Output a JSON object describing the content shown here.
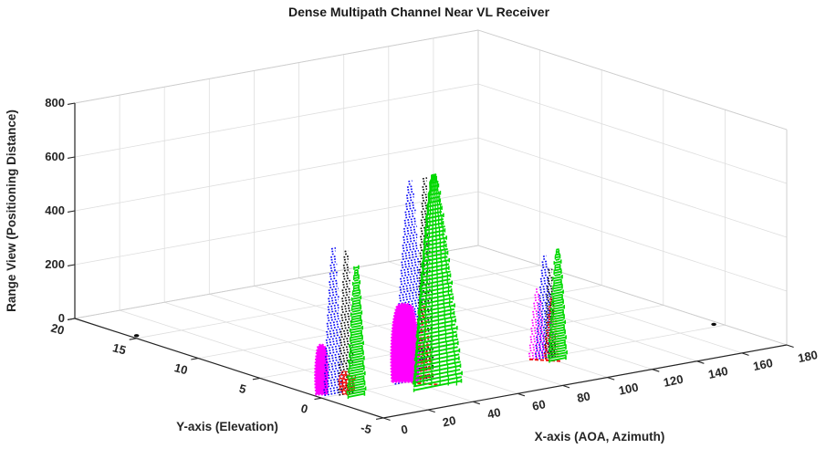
{
  "chart_data": {
    "type": "scatter",
    "subtype": "3d-mesh-spike-plot",
    "title": "Dense Multipath Channel Near VL Receiver",
    "xlabel": "X-axis (AOA, Azimuth)",
    "ylabel": "Y-axis (Elevation)",
    "zlabel": "Range View (Positioning Distance)",
    "xlim": [
      0,
      180
    ],
    "ylim": [
      -5,
      20
    ],
    "zlim": [
      0,
      800
    ],
    "xticks": [
      0,
      20,
      40,
      60,
      80,
      100,
      120,
      140,
      160,
      180
    ],
    "yticks": [
      20,
      15,
      10,
      5,
      0,
      -5
    ],
    "zticks": [
      0,
      200,
      400,
      600,
      800
    ],
    "grid": true,
    "legend": "none",
    "series": [
      {
        "name": "blue-mesh",
        "color": "#0a0af5",
        "style": "dotted-mesh"
      },
      {
        "name": "black-mesh",
        "color": "#0d0d0d",
        "style": "dotted-mesh"
      },
      {
        "name": "green-mesh",
        "color": "#00d800",
        "style": "solid-lattice-mesh"
      },
      {
        "name": "magenta-mesh",
        "color": "#ff00ff",
        "style": "dense-fill-mesh"
      },
      {
        "name": "red-mesh",
        "color": "#f50f0f",
        "style": "dashed-mesh"
      }
    ],
    "clusters": [
      {
        "azimuth": 11,
        "elevation": 0,
        "spikes": [
          {
            "series": "magenta-mesh",
            "peak_range": 185,
            "style": "blob",
            "dx": -27,
            "half_width": 7
          },
          {
            "series": "blue-mesh",
            "peak_range": 545,
            "style": "rows-dotted",
            "dx": -14,
            "half_width": 10
          },
          {
            "series": "black-mesh",
            "peak_range": 540,
            "style": "rows-dotted",
            "dx": 0,
            "half_width": 8
          },
          {
            "series": "red-mesh",
            "peak_range": 80,
            "style": "circles",
            "dx": 1,
            "half_width": 8
          },
          {
            "series": "green-mesh",
            "peak_range": 475,
            "style": "rows-solid",
            "dx": 11,
            "half_width": 9
          }
        ]
      },
      {
        "azimuth": 42,
        "elevation": 0,
        "spikes": [
          {
            "series": "blue-mesh",
            "peak_range": 755,
            "style": "rows-dotted",
            "dx": -6,
            "half_width": 17
          },
          {
            "series": "black-mesh",
            "peak_range": 765,
            "style": "rows-dotted",
            "dx": 10,
            "half_width": 9
          },
          {
            "series": "red-mesh",
            "peak_range": 295,
            "style": "rows-dashed",
            "dx": 7,
            "half_width": 11
          },
          {
            "series": "red-mesh",
            "peak_range": 12,
            "style": "baseline",
            "dx": 10,
            "half_width": 14
          },
          {
            "series": "magenta-mesh",
            "peak_range": 290,
            "style": "blob",
            "dx": -12,
            "half_width": 15
          },
          {
            "series": "green-mesh",
            "peak_range": 780,
            "style": "lattice",
            "dx": 24,
            "half_width": 26,
            "lean": -4
          }
        ]
      },
      {
        "azimuth": 100,
        "elevation": 0,
        "spikes": [
          {
            "series": "blue-mesh",
            "peak_range": 385,
            "style": "rows-dotted",
            "dx": -1,
            "half_width": 10
          },
          {
            "series": "black-mesh",
            "peak_range": 330,
            "style": "rows-dotted",
            "dx": 5,
            "half_width": 6
          },
          {
            "series": "magenta-mesh",
            "peak_range": 260,
            "style": "rows-dotted",
            "dx": -9,
            "half_width": 9
          },
          {
            "series": "red-mesh",
            "peak_range": 225,
            "style": "rows-dashed",
            "dx": 7,
            "half_width": 8
          },
          {
            "series": "red-mesh",
            "peak_range": 10,
            "style": "baseline",
            "dx": 0,
            "half_width": 18
          },
          {
            "series": "green-mesh",
            "peak_range": 405,
            "style": "rows-solid",
            "dx": 13,
            "half_width": 9
          }
        ]
      }
    ],
    "floor_points": [
      {
        "azimuth": 0,
        "elevation": 15,
        "range": 0,
        "color": "#0d0d0d"
      },
      {
        "azimuth": 175,
        "elevation": 0,
        "range": 0,
        "color": "#0d0d0d"
      }
    ]
  },
  "layout_colors": {
    "background": "#ffffff",
    "grid": "#dedede",
    "box_edge": "#cccccc",
    "axis": "#252525"
  }
}
